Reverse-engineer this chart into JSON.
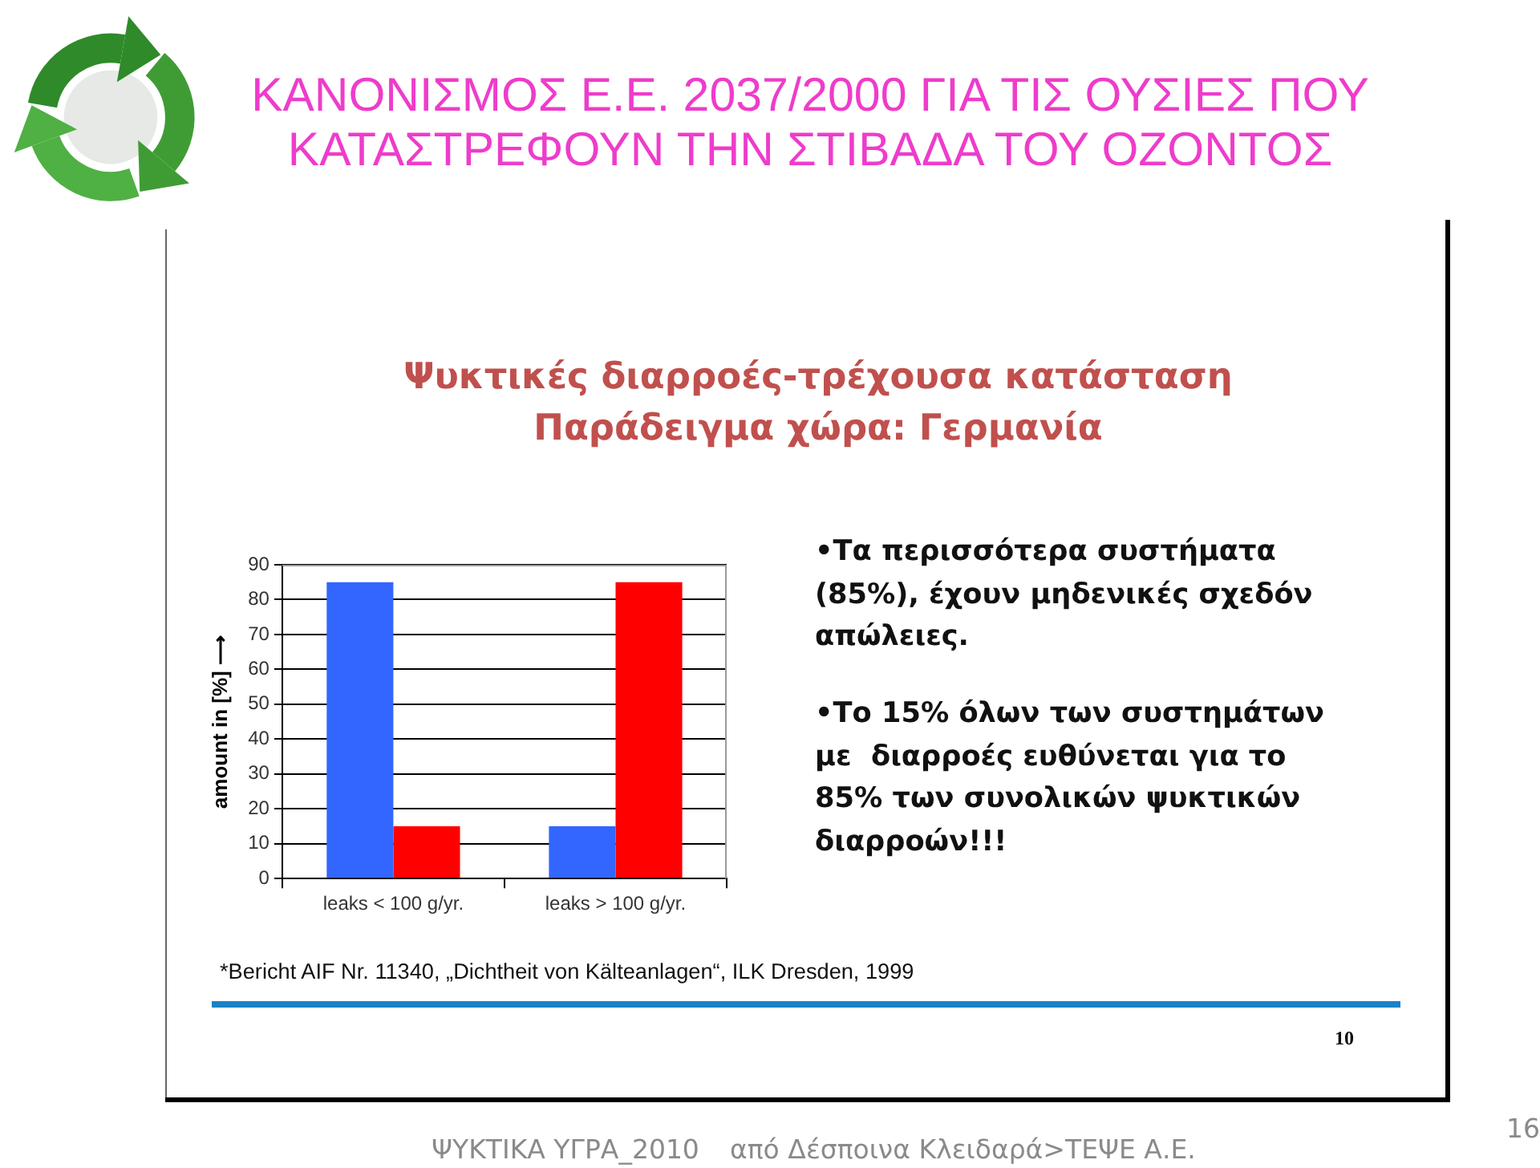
{
  "chart_data": {
    "type": "bar",
    "title": "ΚΑΝΟΝΙΣΜΟΣ Ε.Ε. 2037/2000 ΓΙΑ ΤΙΣ ΟΥΣΙΕΣ ΠΟΥ ΚΑΤΑΣΤΡΕΦΟΥΝ ΤΗΝ ΣΤΙΒΑΔΑ ΤΟΥ ΟΖΟΝΤΟΣ",
    "subtitle": "Ψυκτικές διαρροές-τρέχουσα κατάσταση\nΠαράδειγμα χώρα: Γερμανία",
    "ylabel": "amount in [%] ⟶",
    "categories": [
      "leaks < 100 g/yr.",
      "leaks > 100 g/yr."
    ],
    "series": [
      {
        "color": "#3366ff",
        "values": [
          85,
          15
        ]
      },
      {
        "color": "#ff0000",
        "values": [
          15,
          85
        ]
      }
    ],
    "ylim": [
      0,
      90
    ],
    "yticks": [
      0,
      10,
      20,
      30,
      40,
      50,
      60,
      70,
      80,
      90
    ],
    "grid": "y",
    "annotations": [
      "•Τα περισσότερα συστήματα (85%), έχουν μηδενικές σχεδόν απώλειες.",
      "•Το 15% όλων των συστημάτων με  διαρροές ευθύνεται για το 85% των συνολικών ψυκτικών διαρροών!!!",
      "*Bericht AIF Nr. 11340, „Dichtheit von Kälteanlagen“, ILK Dresden, 1999",
      "10",
      "ΨΥΚΤΙΚΑ ΥΓΡΑ_2010",
      "από Δέσποινα Κλειδαρά>ΤΕΨΕ Α.Ε.",
      "16"
    ]
  }
}
